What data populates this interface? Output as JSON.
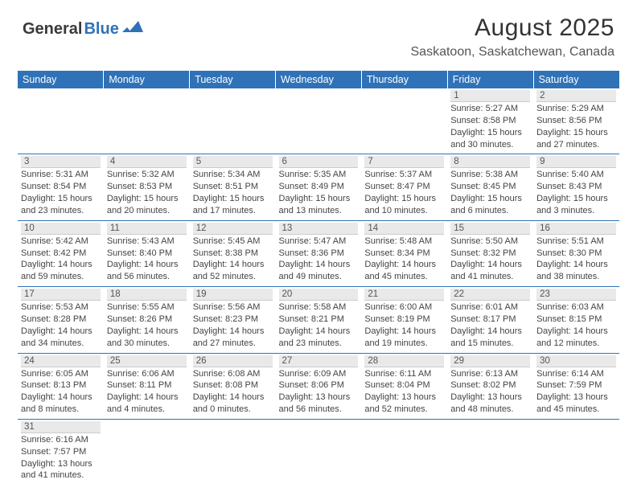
{
  "logo": {
    "text_general": "General",
    "text_blue": "Blue",
    "shape_color": "#2f72b8"
  },
  "title": {
    "month_year": "August 2025",
    "location": "Saskatoon, Saskatchewan, Canada"
  },
  "colors": {
    "header_bg": "#2f72b8",
    "header_text": "#ffffff",
    "daynum_bg": "#e9e9e9",
    "row_divider": "#2f72b8"
  },
  "day_headers": [
    "Sunday",
    "Monday",
    "Tuesday",
    "Wednesday",
    "Thursday",
    "Friday",
    "Saturday"
  ],
  "weeks": [
    [
      null,
      null,
      null,
      null,
      null,
      {
        "n": "1",
        "sr": "5:27 AM",
        "ss": "8:58 PM",
        "dl": "15 hours and 30 minutes."
      },
      {
        "n": "2",
        "sr": "5:29 AM",
        "ss": "8:56 PM",
        "dl": "15 hours and 27 minutes."
      }
    ],
    [
      {
        "n": "3",
        "sr": "5:31 AM",
        "ss": "8:54 PM",
        "dl": "15 hours and 23 minutes."
      },
      {
        "n": "4",
        "sr": "5:32 AM",
        "ss": "8:53 PM",
        "dl": "15 hours and 20 minutes."
      },
      {
        "n": "5",
        "sr": "5:34 AM",
        "ss": "8:51 PM",
        "dl": "15 hours and 17 minutes."
      },
      {
        "n": "6",
        "sr": "5:35 AM",
        "ss": "8:49 PM",
        "dl": "15 hours and 13 minutes."
      },
      {
        "n": "7",
        "sr": "5:37 AM",
        "ss": "8:47 PM",
        "dl": "15 hours and 10 minutes."
      },
      {
        "n": "8",
        "sr": "5:38 AM",
        "ss": "8:45 PM",
        "dl": "15 hours and 6 minutes."
      },
      {
        "n": "9",
        "sr": "5:40 AM",
        "ss": "8:43 PM",
        "dl": "15 hours and 3 minutes."
      }
    ],
    [
      {
        "n": "10",
        "sr": "5:42 AM",
        "ss": "8:42 PM",
        "dl": "14 hours and 59 minutes."
      },
      {
        "n": "11",
        "sr": "5:43 AM",
        "ss": "8:40 PM",
        "dl": "14 hours and 56 minutes."
      },
      {
        "n": "12",
        "sr": "5:45 AM",
        "ss": "8:38 PM",
        "dl": "14 hours and 52 minutes."
      },
      {
        "n": "13",
        "sr": "5:47 AM",
        "ss": "8:36 PM",
        "dl": "14 hours and 49 minutes."
      },
      {
        "n": "14",
        "sr": "5:48 AM",
        "ss": "8:34 PM",
        "dl": "14 hours and 45 minutes."
      },
      {
        "n": "15",
        "sr": "5:50 AM",
        "ss": "8:32 PM",
        "dl": "14 hours and 41 minutes."
      },
      {
        "n": "16",
        "sr": "5:51 AM",
        "ss": "8:30 PM",
        "dl": "14 hours and 38 minutes."
      }
    ],
    [
      {
        "n": "17",
        "sr": "5:53 AM",
        "ss": "8:28 PM",
        "dl": "14 hours and 34 minutes."
      },
      {
        "n": "18",
        "sr": "5:55 AM",
        "ss": "8:26 PM",
        "dl": "14 hours and 30 minutes."
      },
      {
        "n": "19",
        "sr": "5:56 AM",
        "ss": "8:23 PM",
        "dl": "14 hours and 27 minutes."
      },
      {
        "n": "20",
        "sr": "5:58 AM",
        "ss": "8:21 PM",
        "dl": "14 hours and 23 minutes."
      },
      {
        "n": "21",
        "sr": "6:00 AM",
        "ss": "8:19 PM",
        "dl": "14 hours and 19 minutes."
      },
      {
        "n": "22",
        "sr": "6:01 AM",
        "ss": "8:17 PM",
        "dl": "14 hours and 15 minutes."
      },
      {
        "n": "23",
        "sr": "6:03 AM",
        "ss": "8:15 PM",
        "dl": "14 hours and 12 minutes."
      }
    ],
    [
      {
        "n": "24",
        "sr": "6:05 AM",
        "ss": "8:13 PM",
        "dl": "14 hours and 8 minutes."
      },
      {
        "n": "25",
        "sr": "6:06 AM",
        "ss": "8:11 PM",
        "dl": "14 hours and 4 minutes."
      },
      {
        "n": "26",
        "sr": "6:08 AM",
        "ss": "8:08 PM",
        "dl": "14 hours and 0 minutes."
      },
      {
        "n": "27",
        "sr": "6:09 AM",
        "ss": "8:06 PM",
        "dl": "13 hours and 56 minutes."
      },
      {
        "n": "28",
        "sr": "6:11 AM",
        "ss": "8:04 PM",
        "dl": "13 hours and 52 minutes."
      },
      {
        "n": "29",
        "sr": "6:13 AM",
        "ss": "8:02 PM",
        "dl": "13 hours and 48 minutes."
      },
      {
        "n": "30",
        "sr": "6:14 AM",
        "ss": "7:59 PM",
        "dl": "13 hours and 45 minutes."
      }
    ],
    [
      {
        "n": "31",
        "sr": "6:16 AM",
        "ss": "7:57 PM",
        "dl": "13 hours and 41 minutes."
      },
      null,
      null,
      null,
      null,
      null,
      null
    ]
  ],
  "labels": {
    "sunrise": "Sunrise: ",
    "sunset": "Sunset: ",
    "daylight": "Daylight: "
  }
}
